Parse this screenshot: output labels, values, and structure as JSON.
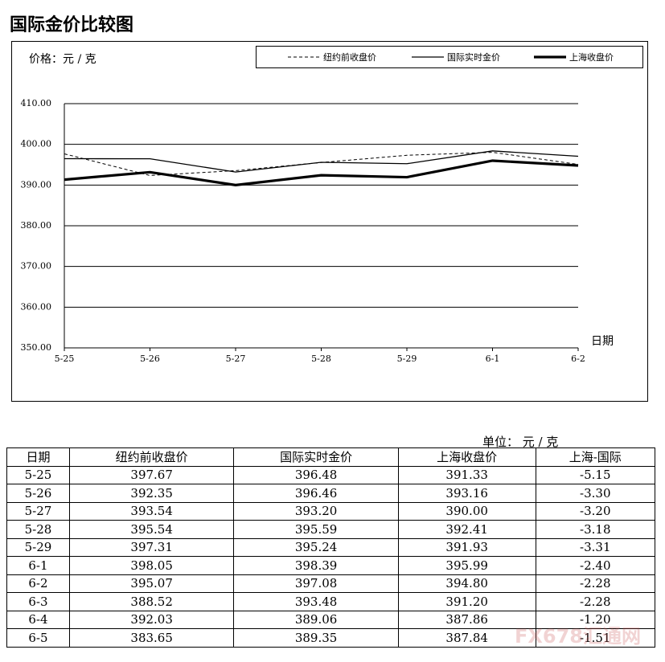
{
  "chart_data": {
    "type": "line",
    "title": "国际金价比较图",
    "y_label": "价格：元 / 克",
    "x_label": "日期",
    "categories": [
      "5-25",
      "5-26",
      "5-27",
      "5-28",
      "5-29",
      "6-1",
      "6-2"
    ],
    "series": [
      {
        "name": "纽约前收盘价",
        "color": "#000000",
        "dashed": true,
        "width": 1,
        "values": [
          397.67,
          392.35,
          393.54,
          395.54,
          397.31,
          398.05,
          395.07
        ]
      },
      {
        "name": "国际实时金价",
        "color": "#000000",
        "dashed": false,
        "width": 1.3,
        "values": [
          396.48,
          396.46,
          393.2,
          395.59,
          395.24,
          398.39,
          397.08
        ]
      },
      {
        "name": "上海收盘价",
        "color": "#000000",
        "dashed": false,
        "width": 3.2,
        "values": [
          391.33,
          393.16,
          390.0,
          392.41,
          391.93,
          395.99,
          394.8
        ]
      }
    ],
    "ylim": [
      350,
      410
    ],
    "yticks": [
      {
        "value": 350,
        "label": "350.00"
      },
      {
        "value": 360,
        "label": "360.00"
      },
      {
        "value": 370,
        "label": "370.00"
      },
      {
        "value": 380,
        "label": "380.00"
      },
      {
        "value": 390,
        "label": "390.00"
      },
      {
        "value": 400,
        "label": "400.00"
      },
      {
        "value": 410,
        "label": "410.00"
      }
    ],
    "grid": true,
    "legend": "top"
  },
  "table": {
    "unit": "单位： 元 / 克",
    "header": [
      "日期",
      "纽约前收盘价",
      "国际实时金价",
      "上海收盘价",
      "上海-国际"
    ],
    "rows": [
      [
        "5-25",
        "397.67",
        "396.48",
        "391.33",
        "-5.15"
      ],
      [
        "5-26",
        "392.35",
        "396.46",
        "393.16",
        "-3.30"
      ],
      [
        "5-27",
        "393.54",
        "393.20",
        "390.00",
        "-3.20"
      ],
      [
        "5-28",
        "395.54",
        "395.59",
        "392.41",
        "-3.18"
      ],
      [
        "5-29",
        "397.31",
        "395.24",
        "391.93",
        "-3.31"
      ],
      [
        "6-1",
        "398.05",
        "398.39",
        "395.99",
        "-2.40"
      ],
      [
        "6-2",
        "395.07",
        "397.08",
        "394.80",
        "-2.28"
      ],
      [
        "6-3",
        "388.52",
        "393.48",
        "391.20",
        "-2.28"
      ],
      [
        "6-4",
        "392.03",
        "389.06",
        "387.86",
        "-1.20"
      ],
      [
        "6-5",
        "383.65",
        "389.35",
        "387.84",
        "-1.51"
      ]
    ]
  },
  "watermark": "FX678汇通网"
}
